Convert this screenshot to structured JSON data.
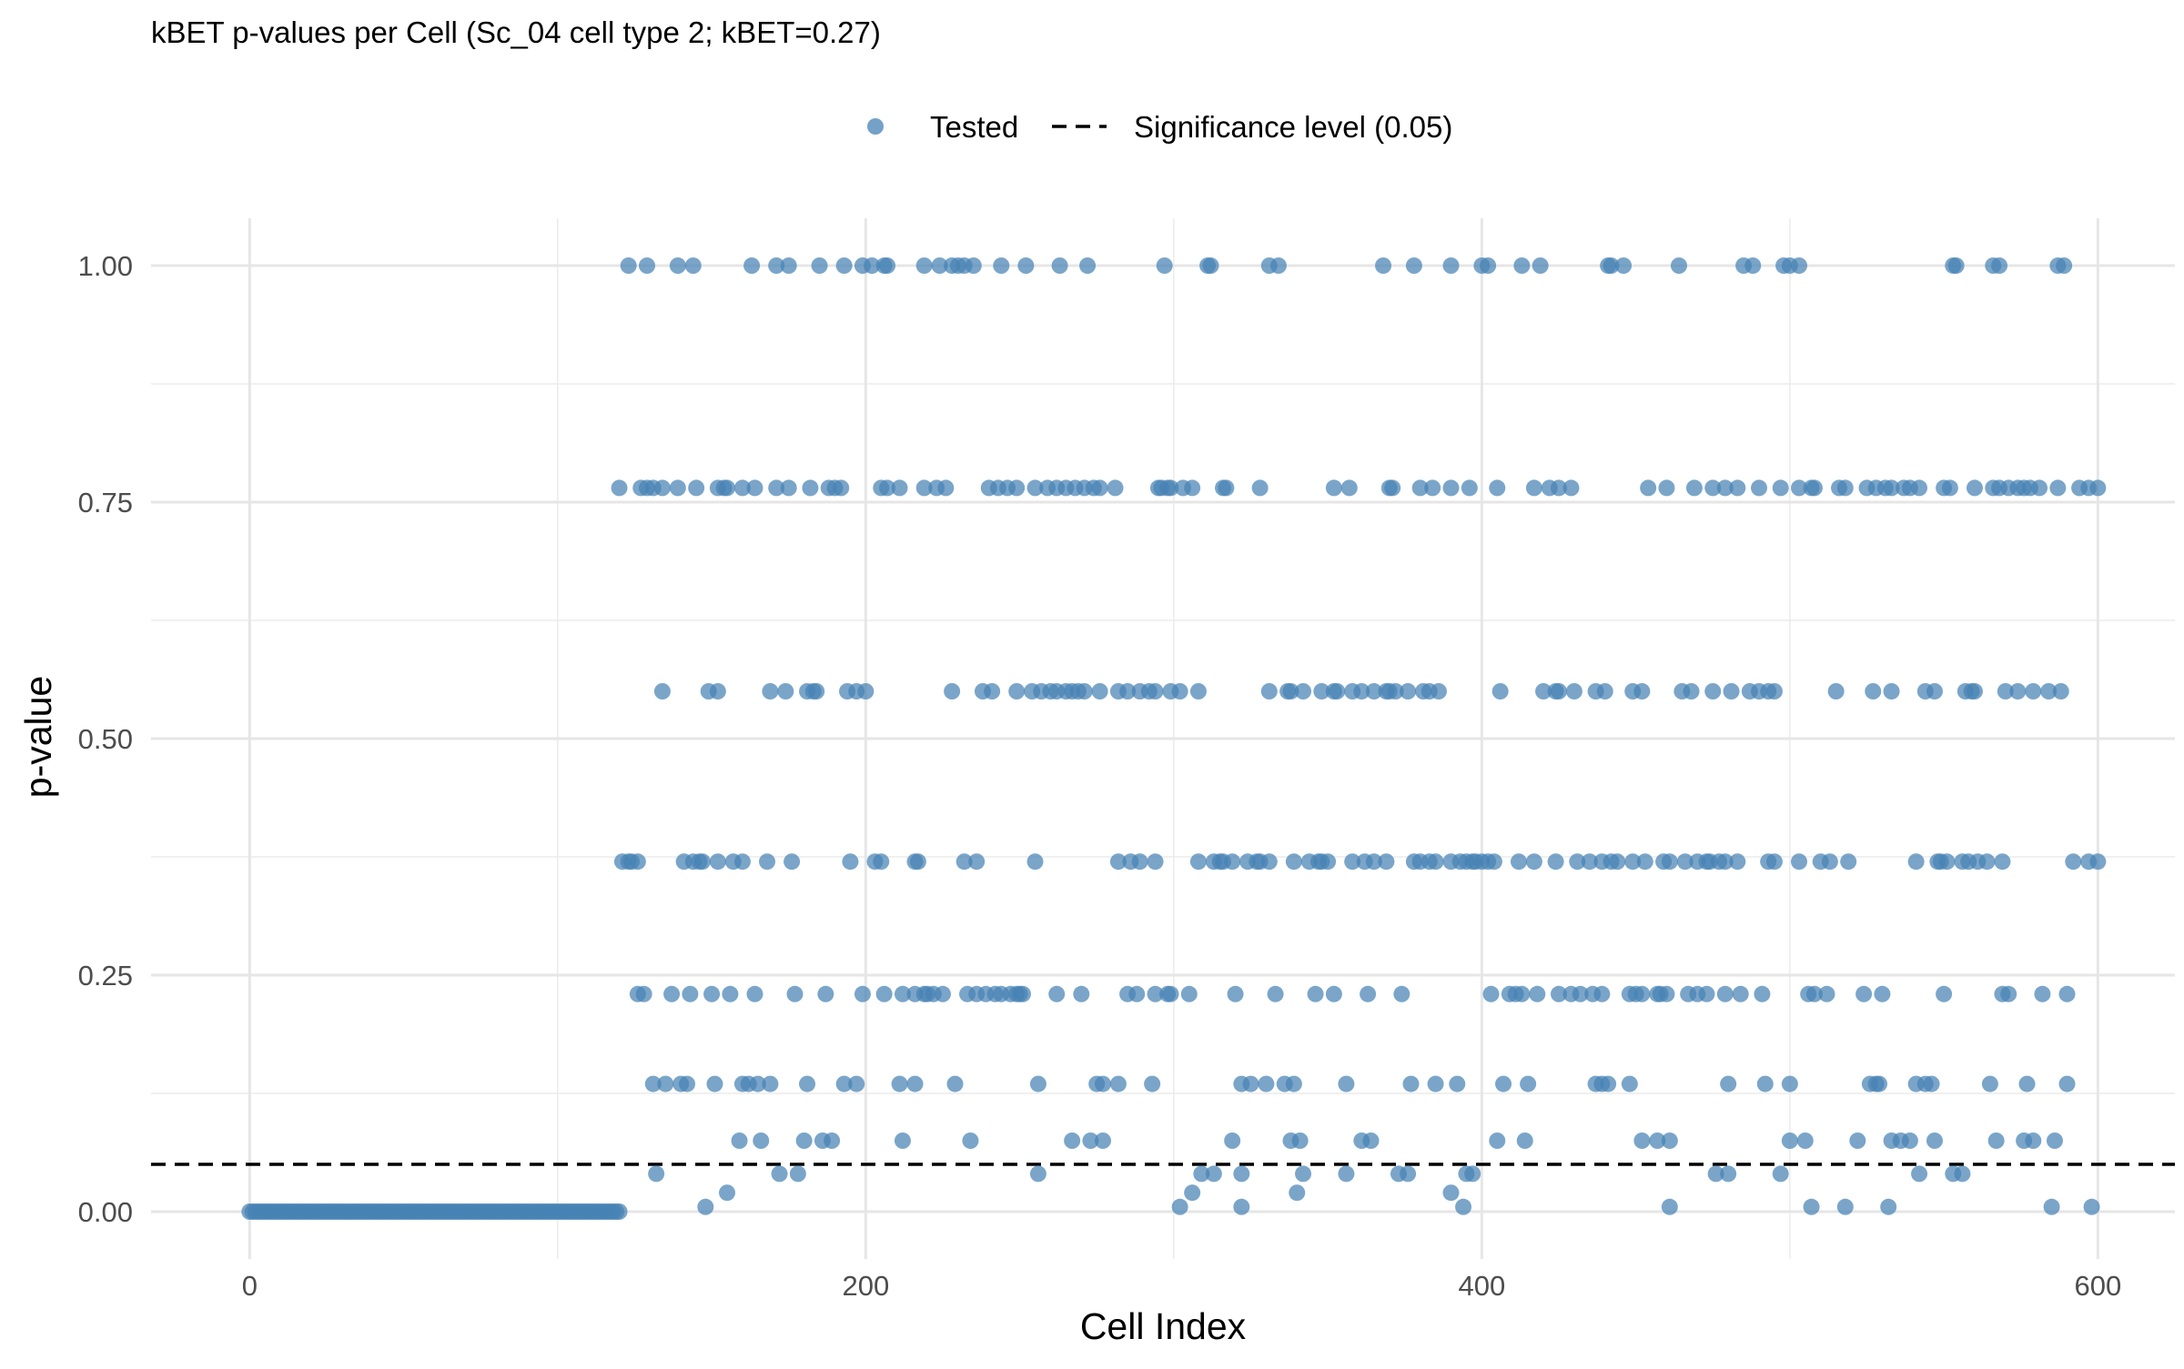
{
  "chart_data": {
    "type": "scatter",
    "title": "kBET p-values per Cell (Sc_04 cell type 2; kBET=0.27)",
    "xlabel": "Cell Index",
    "ylabel": "p-value",
    "xlim": [
      -32,
      625
    ],
    "ylim": [
      -0.05,
      1.05
    ],
    "x_ticks": [
      0,
      200,
      400,
      600
    ],
    "x_tick_labels": [
      "0",
      "200",
      "400",
      "600"
    ],
    "y_ticks": [
      0,
      0.25,
      0.5,
      0.75,
      1
    ],
    "y_tick_labels": [
      "0.00",
      "0.25",
      "0.50",
      "0.75",
      "1.00"
    ],
    "grid": true,
    "legend_position": "top",
    "threshold": {
      "name": "Significance level (0.05)",
      "value": 0.05,
      "style": "dashed",
      "color": "#000000"
    },
    "series": [
      {
        "name": "Tested",
        "color": "#4682B4",
        "zero_run": {
          "from": 0,
          "to": 120,
          "value": 0
        },
        "levels": [
          {
            "y": 1.0,
            "x": [
              123,
              129,
              139,
              144,
              163,
              171,
              175,
              185,
              193,
              199,
              202,
              206,
              207,
              219,
              224,
              228,
              230,
              232,
              235,
              244,
              252,
              263,
              272,
              297,
              311,
              312,
              331,
              334,
              368,
              378,
              390,
              400,
              402,
              413,
              419,
              441,
              442,
              446,
              464,
              485,
              488,
              498,
              500,
              503,
              553,
              554,
              566,
              568,
              587,
              589
            ]
          },
          {
            "y": 0.765,
            "x": [
              120,
              127,
              129,
              131,
              134,
              139,
              145,
              152,
              154,
              155,
              160,
              164,
              171,
              175,
              182,
              188,
              190,
              192,
              205,
              207,
              211,
              219,
              223,
              226,
              240,
              243,
              246,
              249,
              255,
              259,
              262,
              265,
              268,
              271,
              274,
              276,
              281,
              295,
              296,
              298,
              299,
              303,
              306,
              316,
              317,
              328,
              352,
              357,
              370,
              371,
              380,
              384,
              390,
              396,
              405,
              417,
              422,
              425,
              429,
              454,
              460,
              469,
              475,
              479,
              483,
              490,
              497,
              503,
              507,
              508,
              516,
              518,
              525,
              528,
              531,
              533,
              537,
              539,
              542,
              550,
              552,
              560,
              566,
              568,
              571,
              574,
              576,
              578,
              581,
              587,
              594,
              597,
              600
            ]
          },
          {
            "y": 0.55,
            "x": [
              134,
              149,
              152,
              169,
              174,
              181,
              183,
              184,
              194,
              197,
              200,
              228,
              238,
              241,
              249,
              254,
              257,
              260,
              262,
              265,
              267,
              269,
              271,
              276,
              282,
              285,
              289,
              292,
              294,
              299,
              302,
              308,
              331,
              337,
              338,
              342,
              348,
              352,
              353,
              358,
              361,
              365,
              369,
              370,
              372,
              376,
              381,
              383,
              386,
              406,
              420,
              424,
              425,
              430,
              437,
              440,
              449,
              452,
              465,
              468,
              475,
              481,
              487,
              490,
              493,
              495,
              515,
              527,
              533,
              544,
              547,
              557,
              559,
              560,
              570,
              574,
              579,
              584,
              588
            ]
          },
          {
            "y": 0.37,
            "x": [
              121,
              123,
              124,
              126,
              141,
              144,
              146,
              147,
              152,
              157,
              160,
              168,
              176,
              195,
              203,
              205,
              216,
              217,
              232,
              236,
              255,
              282,
              286,
              289,
              294,
              308,
              313,
              315,
              316,
              319,
              324,
              327,
              328,
              331,
              339,
              344,
              347,
              348,
              350,
              358,
              362,
              365,
              369,
              378,
              380,
              383,
              385,
              390,
              393,
              395,
              397,
              398,
              400,
              402,
              404,
              412,
              417,
              424,
              431,
              435,
              439,
              442,
              444,
              449,
              453,
              459,
              461,
              466,
              470,
              473,
              474,
              477,
              479,
              483,
              493,
              495,
              503,
              510,
              513,
              519,
              541,
              548,
              549,
              551,
              556,
              558,
              561,
              564,
              569,
              592,
              597,
              600
            ]
          },
          {
            "y": 0.23,
            "x": [
              126,
              128,
              137,
              143,
              150,
              156,
              164,
              177,
              187,
              199,
              206,
              212,
              216,
              219,
              220,
              222,
              225,
              233,
              236,
              239,
              242,
              244,
              247,
              249,
              250,
              251,
              262,
              270,
              285,
              288,
              294,
              298,
              299,
              305,
              320,
              333,
              346,
              352,
              363,
              374,
              403,
              409,
              411,
              413,
              418,
              425,
              429,
              432,
              436,
              439,
              448,
              450,
              452,
              457,
              458,
              460,
              467,
              470,
              473,
              479,
              484,
              491,
              506,
              508,
              512,
              524,
              530,
              550,
              569,
              571,
              582,
              590
            ]
          },
          {
            "y": 0.135,
            "x": [
              131,
              135,
              140,
              142,
              151,
              160,
              162,
              165,
              169,
              181,
              193,
              197,
              211,
              216,
              229,
              256,
              275,
              277,
              282,
              293,
              322,
              325,
              330,
              336,
              339,
              356,
              377,
              385,
              392,
              407,
              415,
              437,
              439,
              441,
              448,
              480,
              492,
              500,
              526,
              528,
              529,
              541,
              544,
              546,
              565,
              577,
              590
            ]
          },
          {
            "y": 0.075,
            "x": [
              159,
              166,
              180,
              186,
              189,
              212,
              234,
              267,
              273,
              277,
              319,
              338,
              341,
              361,
              364,
              405,
              414,
              452,
              457,
              461,
              500,
              505,
              522,
              533,
              536,
              539,
              547,
              567,
              576,
              579,
              586
            ]
          },
          {
            "y": 0.04,
            "x": [
              132,
              172,
              178,
              256,
              309,
              313,
              322,
              342,
              356,
              373,
              376,
              395,
              397,
              476,
              480,
              497,
              542,
              553,
              556
            ]
          },
          {
            "y": 0.02,
            "x": [
              155,
              306,
              340,
              390
            ]
          },
          {
            "y": 0.005,
            "x": [
              148,
              302,
              322,
              394,
              461,
              507,
              518,
              532,
              585,
              598
            ]
          }
        ]
      }
    ]
  }
}
